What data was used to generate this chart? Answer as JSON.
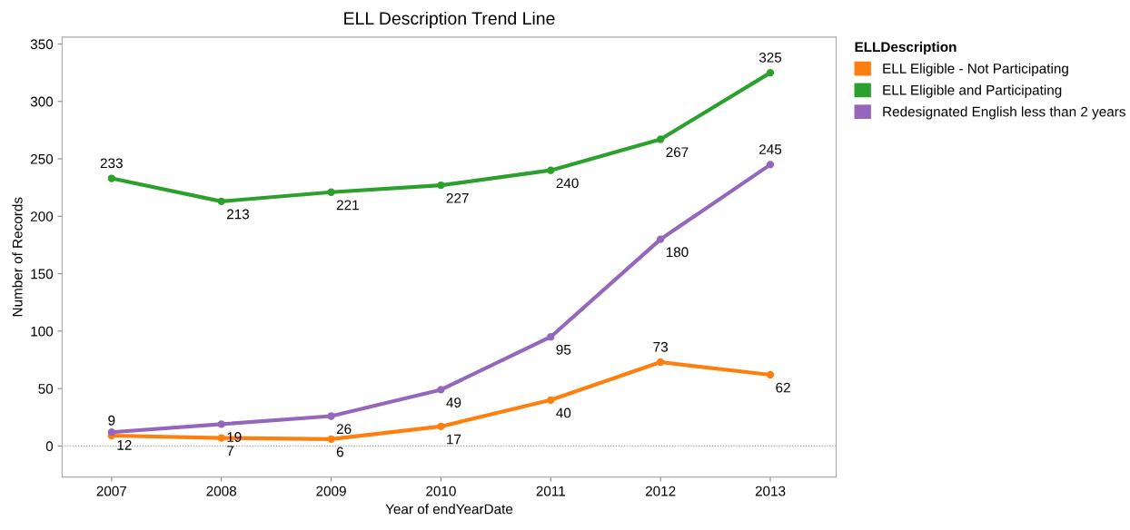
{
  "chart_data": {
    "type": "line",
    "title": "ELL Description Trend Line",
    "xlabel": "Year of endYearDate",
    "ylabel": "Number of Records",
    "legend_title": "ELLDescription",
    "x": [
      2007,
      2008,
      2009,
      2010,
      2011,
      2012,
      2013
    ],
    "series": [
      {
        "name": "ELL Eligible - Not Participating",
        "color": "#ff7f0e",
        "values": [
          9,
          7,
          6,
          17,
          40,
          73,
          62
        ]
      },
      {
        "name": "ELL Eligible and Participating",
        "color": "#2ca02c",
        "values": [
          233,
          213,
          221,
          227,
          240,
          267,
          325
        ]
      },
      {
        "name": "Redesignated English less than 2 years",
        "color": "#9467bd",
        "values": [
          12,
          19,
          26,
          49,
          95,
          180,
          245
        ]
      }
    ],
    "xlim": [
      2006.55,
      2013.6
    ],
    "xticks": [
      2007,
      2008,
      2009,
      2010,
      2011,
      2012,
      2013
    ],
    "ylim": [
      -27,
      356
    ],
    "yticks": [
      0,
      50,
      100,
      150,
      200,
      250,
      300,
      350
    ],
    "ref_lines": [
      {
        "axis": "y",
        "value": 0,
        "color": "#999999",
        "line_style": "dotted"
      }
    ],
    "data_labels": true,
    "marker": "circle",
    "line_style": "solid",
    "grid": false,
    "legend": "top right"
  }
}
